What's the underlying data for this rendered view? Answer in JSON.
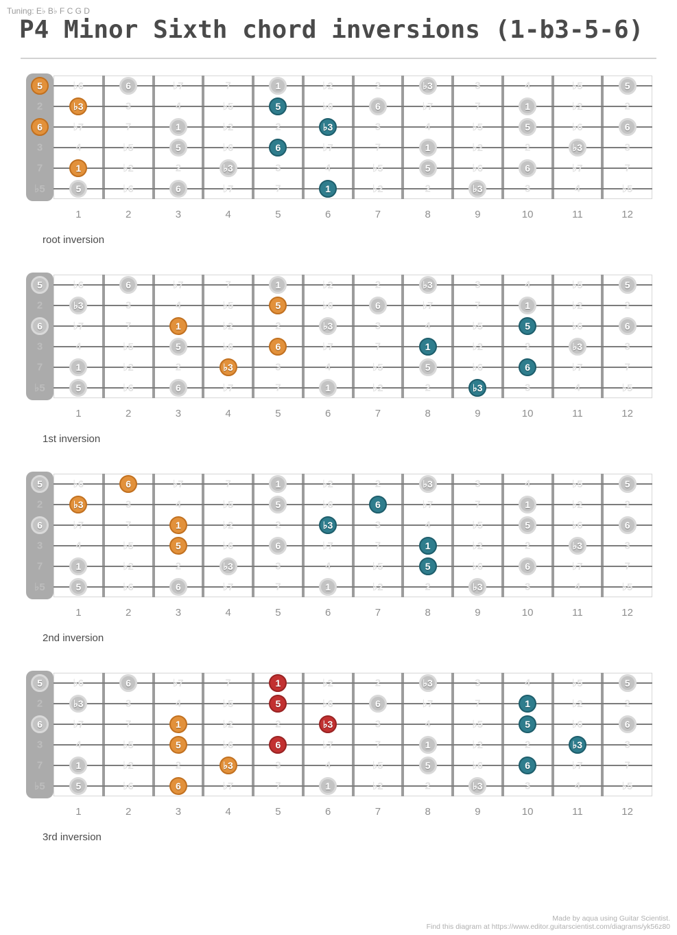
{
  "page": {
    "tuning_label": "Tuning: E♭ B♭ F C G D",
    "title": "P4 Minor Sixth chord inversions (1-b3-5-6)",
    "footer_credit": "Made by aqua using Guitar Scientist.",
    "footer_link": "Find this diagram at https://www.editor.guitarscientist.com/diagrams/yk56z80"
  },
  "colors": {
    "orange": "#e2913b",
    "teal": "#2f7d8d",
    "red": "#c23131",
    "gray_dot": "#c3c3c3",
    "nut": "#ababab",
    "faint_label": "#e3e3e3"
  },
  "board": {
    "open_labels": [
      "5",
      "2",
      "6",
      "3",
      "7",
      "♭5"
    ],
    "fret_numbers": [
      "1",
      "2",
      "3",
      "4",
      "5",
      "6",
      "7",
      "8",
      "9",
      "10",
      "11",
      "12"
    ],
    "string_frets": [
      [
        "♭6",
        "6",
        "♭7",
        "7",
        "1",
        "♭2",
        "2",
        "♭3",
        "3",
        "4",
        "♭5",
        "5"
      ],
      [
        "♭3",
        "3",
        "4",
        "♭5",
        "5",
        "♭6",
        "6",
        "♭7",
        "7",
        "1",
        "♭2",
        "2"
      ],
      [
        "♭7",
        "7",
        "1",
        "♭2",
        "2",
        "♭3",
        "3",
        "4",
        "♭5",
        "5",
        "♭6",
        "6"
      ],
      [
        "4",
        "♭5",
        "5",
        "♭6",
        "6",
        "♭7",
        "7",
        "1",
        "♭2",
        "2",
        "♭3",
        "3"
      ],
      [
        "1",
        "♭2",
        "2",
        "♭3",
        "3",
        "4",
        "♭5",
        "5",
        "♭6",
        "6",
        "♭7",
        "7"
      ],
      [
        "5",
        "♭6",
        "6",
        "♭7",
        "7",
        "1",
        "♭2",
        "2",
        "♭3",
        "3",
        "4",
        "♭5"
      ]
    ],
    "gray_dots": [
      [
        0,
        2,
        5,
        8,
        12
      ],
      [
        1,
        5,
        7,
        10
      ],
      [
        0,
        3,
        6,
        10,
        12
      ],
      [
        3,
        5,
        8,
        11
      ],
      [
        1,
        4,
        8,
        10
      ],
      [
        1,
        3,
        6,
        9
      ]
    ]
  },
  "diagrams": [
    {
      "caption": "root inversion",
      "highlights": [
        {
          "s": 0,
          "f": 0,
          "color": "orange"
        },
        {
          "s": 1,
          "f": 1,
          "color": "orange"
        },
        {
          "s": 2,
          "f": 0,
          "color": "orange"
        },
        {
          "s": 4,
          "f": 1,
          "color": "orange"
        },
        {
          "s": 1,
          "f": 5,
          "color": "teal"
        },
        {
          "s": 2,
          "f": 6,
          "color": "teal"
        },
        {
          "s": 3,
          "f": 5,
          "color": "teal"
        },
        {
          "s": 5,
          "f": 6,
          "color": "teal"
        }
      ]
    },
    {
      "caption": "1st inversion",
      "highlights": [
        {
          "s": 1,
          "f": 5,
          "color": "orange"
        },
        {
          "s": 2,
          "f": 3,
          "color": "orange"
        },
        {
          "s": 3,
          "f": 5,
          "color": "orange"
        },
        {
          "s": 4,
          "f": 4,
          "color": "orange"
        },
        {
          "s": 2,
          "f": 10,
          "color": "teal"
        },
        {
          "s": 3,
          "f": 8,
          "color": "teal"
        },
        {
          "s": 4,
          "f": 10,
          "color": "teal"
        },
        {
          "s": 5,
          "f": 9,
          "color": "teal"
        }
      ]
    },
    {
      "caption": "2nd inversion",
      "highlights": [
        {
          "s": 0,
          "f": 2,
          "color": "orange"
        },
        {
          "s": 1,
          "f": 1,
          "color": "orange"
        },
        {
          "s": 2,
          "f": 3,
          "color": "orange"
        },
        {
          "s": 3,
          "f": 3,
          "color": "orange"
        },
        {
          "s": 1,
          "f": 7,
          "color": "teal"
        },
        {
          "s": 2,
          "f": 6,
          "color": "teal"
        },
        {
          "s": 3,
          "f": 8,
          "color": "teal"
        },
        {
          "s": 4,
          "f": 8,
          "color": "teal"
        }
      ]
    },
    {
      "caption": "3rd inversion",
      "highlights": [
        {
          "s": 2,
          "f": 3,
          "color": "orange"
        },
        {
          "s": 3,
          "f": 3,
          "color": "orange"
        },
        {
          "s": 4,
          "f": 4,
          "color": "orange"
        },
        {
          "s": 5,
          "f": 3,
          "color": "orange"
        },
        {
          "s": 0,
          "f": 5,
          "color": "red"
        },
        {
          "s": 1,
          "f": 5,
          "color": "red"
        },
        {
          "s": 2,
          "f": 6,
          "color": "red"
        },
        {
          "s": 3,
          "f": 5,
          "color": "red"
        },
        {
          "s": 1,
          "f": 10,
          "color": "teal"
        },
        {
          "s": 2,
          "f": 10,
          "color": "teal"
        },
        {
          "s": 3,
          "f": 11,
          "color": "teal"
        },
        {
          "s": 4,
          "f": 10,
          "color": "teal"
        }
      ]
    }
  ]
}
